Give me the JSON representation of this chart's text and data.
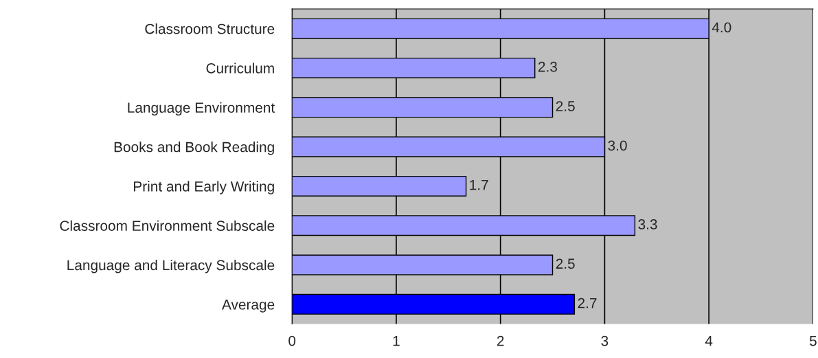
{
  "chart_data": {
    "type": "bar",
    "orientation": "horizontal",
    "categories": [
      "Classroom Structure",
      "Curriculum",
      "Language Environment",
      "Books and Book Reading",
      "Print and Early Writing",
      "Classroom Environment Subscale",
      "Language and Literacy Subscale",
      "Average"
    ],
    "values": [
      4.0,
      2.33,
      2.5,
      3.0,
      1.67,
      3.29,
      2.5,
      2.71
    ],
    "value_labels": [
      "4.0",
      "2.3",
      "2.5",
      "3.0",
      "1.7",
      "3.3",
      "2.5",
      "2.7"
    ],
    "colors": [
      "#9999ff",
      "#9999ff",
      "#9999ff",
      "#9999ff",
      "#9999ff",
      "#9999ff",
      "#9999ff",
      "#0000ff"
    ],
    "xlim": [
      0,
      5
    ],
    "xticks": [
      0,
      1,
      2,
      3,
      4,
      5
    ],
    "grid": "x",
    "legend": false
  }
}
